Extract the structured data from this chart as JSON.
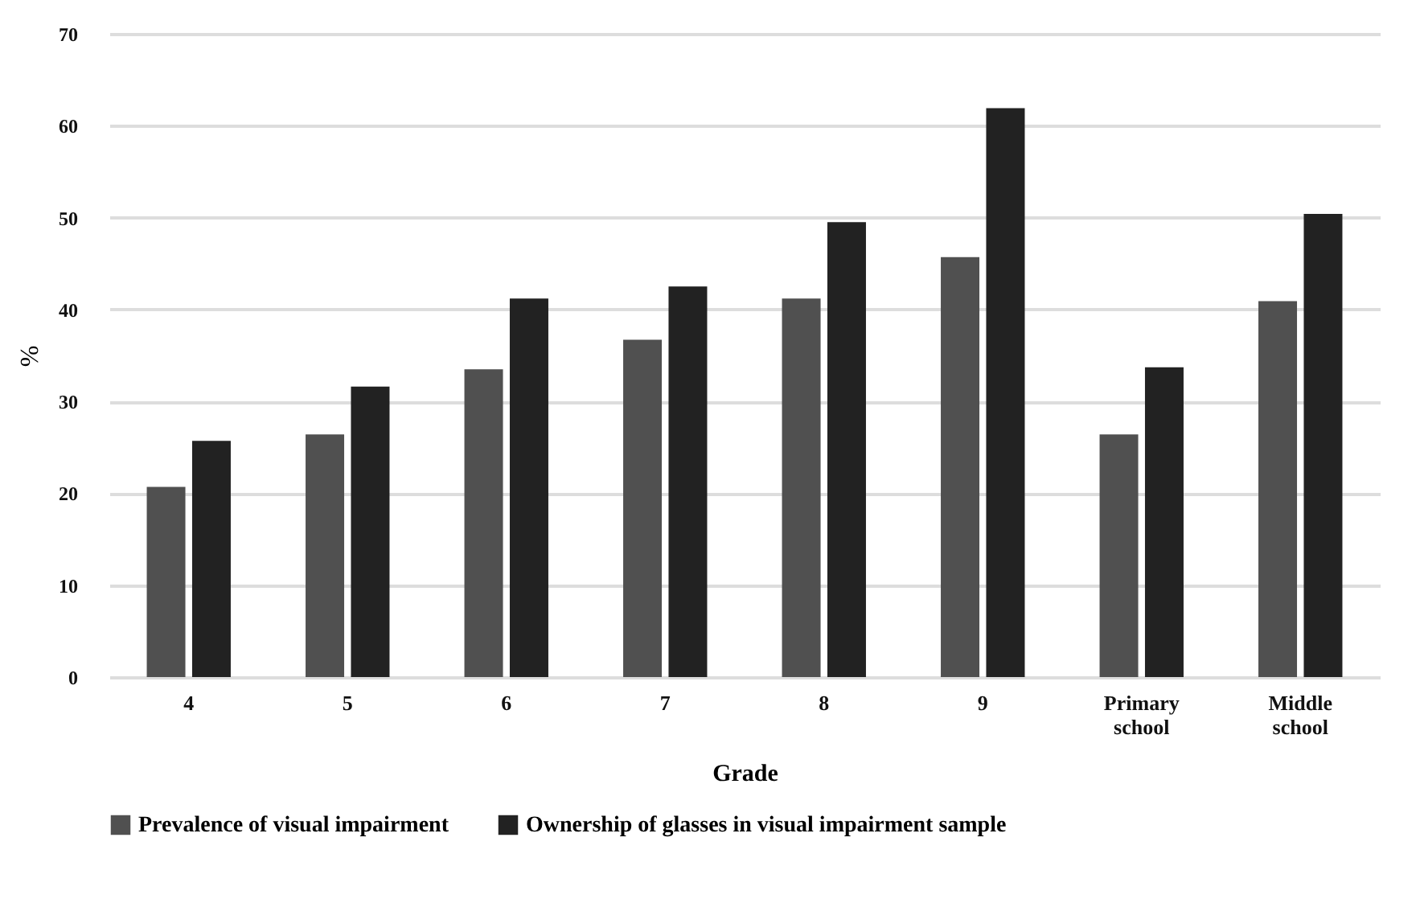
{
  "chart_data": {
    "type": "bar",
    "xlabel": "Grade",
    "ylabel": "%",
    "categories": [
      "4",
      "5",
      "6",
      "7",
      "8",
      "9",
      "Primary school",
      "Middle school"
    ],
    "series": [
      {
        "name": "Prevalence of visual impairment",
        "color": "#505050",
        "values": [
          20.7,
          26.4,
          33.5,
          36.7,
          41.2,
          45.7,
          26.4,
          40.9
        ]
      },
      {
        "name": "Ownership of glasses in visual impairment sample",
        "color": "#222222",
        "values": [
          25.7,
          31.6,
          41.2,
          42.5,
          49.5,
          61.9,
          33.7,
          50.4
        ]
      }
    ],
    "ylim": [
      0,
      70
    ],
    "yticks": [
      0,
      10,
      20,
      30,
      40,
      50,
      60,
      70
    ],
    "grid": "y",
    "legend": "bottom"
  }
}
